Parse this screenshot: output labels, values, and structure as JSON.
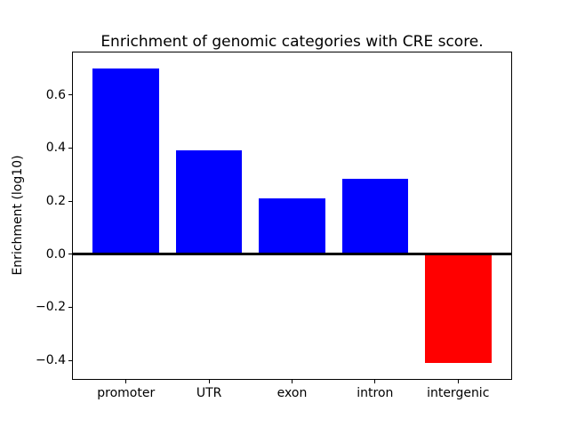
{
  "figure": {
    "background": "#ffffff",
    "axis_color": "#000000",
    "text_color": "#000000"
  },
  "chart_data": {
    "type": "bar",
    "title": "Enrichment of genomic categories with CRE score.",
    "xlabel": "",
    "ylabel": "Enrichment (log10)",
    "categories": [
      "promoter",
      "UTR",
      "exon",
      "intron",
      "intergenic"
    ],
    "values": [
      0.7,
      0.39,
      0.21,
      0.285,
      -0.41
    ],
    "bar_colors": [
      "#0000ff",
      "#0000ff",
      "#0000ff",
      "#0000ff",
      "#ff0000"
    ],
    "positive_color": "#0000ff",
    "negative_color": "#ff0000",
    "bar_width": 0.8,
    "xlim": [
      -0.64,
      4.64
    ],
    "ylim": [
      -0.47,
      0.76
    ],
    "yticks": [
      0.6,
      0.4,
      0.2,
      0.0,
      -0.2,
      -0.4
    ],
    "zero_line": true,
    "grid": false,
    "legend": false
  }
}
